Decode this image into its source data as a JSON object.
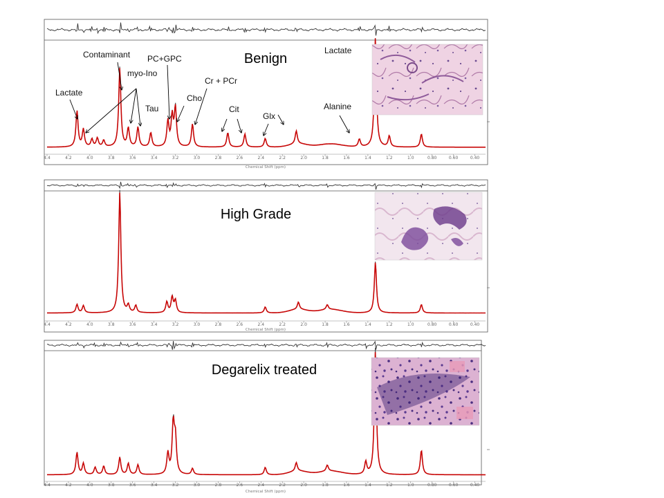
{
  "chart_data": [
    {
      "type": "line",
      "title": "Benign",
      "xlabel": "Chemical Shift (ppm)",
      "xlim": [
        4.4,
        0.3
      ],
      "ticks": [
        "4.4",
        "4.2",
        "4.0",
        "3.8",
        "3.6",
        "3.4",
        "3.2",
        "3.0",
        "2.8",
        "2.6",
        "2.4",
        "2.2",
        "2.0",
        "1.8",
        "1.6",
        "1.4",
        "1.2",
        "1.0",
        "0.80",
        "0.60",
        "0.40"
      ],
      "annotations": [
        "Contaminant",
        "PC+GPC",
        "Lactate",
        "myo-Ino",
        "Lactate",
        "Tau",
        "Cr + PCr",
        "Cho",
        "Cit",
        "Glx",
        "Alanine"
      ],
      "series": [
        {
          "name": "measured",
          "color": "#333333"
        },
        {
          "name": "fit",
          "color": "#cc0000"
        }
      ],
      "peaks": [
        {
          "ppm": 4.12,
          "height": 0.33
        },
        {
          "ppm": 4.06,
          "height": 0.16
        },
        {
          "ppm": 3.98,
          "height": 0.07
        },
        {
          "ppm": 3.93,
          "height": 0.08
        },
        {
          "ppm": 3.87,
          "height": 0.06
        },
        {
          "ppm": 3.72,
          "height": 0.72
        },
        {
          "ppm": 3.64,
          "height": 0.17
        },
        {
          "ppm": 3.55,
          "height": 0.18
        },
        {
          "ppm": 3.43,
          "height": 0.13
        },
        {
          "ppm": 3.27,
          "height": 0.23
        },
        {
          "ppm": 3.23,
          "height": 0.27
        },
        {
          "ppm": 3.2,
          "height": 0.35
        },
        {
          "ppm": 3.04,
          "height": 0.21
        },
        {
          "ppm": 2.71,
          "height": 0.13
        },
        {
          "ppm": 2.55,
          "height": 0.12
        },
        {
          "ppm": 2.36,
          "height": 0.08
        },
        {
          "ppm": 2.07,
          "height": 0.12
        },
        {
          "ppm": 1.33,
          "height": 1.0
        },
        {
          "ppm": 1.48,
          "height": 0.07
        },
        {
          "ppm": 1.2,
          "height": 0.1
        },
        {
          "ppm": 0.9,
          "height": 0.12
        }
      ]
    },
    {
      "type": "line",
      "title": "High Grade",
      "xlabel": "Chemical Shift (ppm)",
      "xlim": [
        4.4,
        0.3
      ],
      "ticks": [
        "4.4",
        "4.2",
        "4.0",
        "3.8",
        "3.6",
        "3.4",
        "3.2",
        "3.0",
        "2.8",
        "2.6",
        "2.4",
        "2.2",
        "2.0",
        "1.8",
        "1.6",
        "1.4",
        "1.2",
        "1.0",
        "0.80",
        "0.60",
        "0.40"
      ],
      "series": [
        {
          "name": "measured",
          "color": "#333333"
        },
        {
          "name": "fit",
          "color": "#cc0000"
        }
      ],
      "peaks": [
        {
          "ppm": 4.12,
          "height": 0.07
        },
        {
          "ppm": 4.06,
          "height": 0.06
        },
        {
          "ppm": 3.72,
          "height": 1.0
        },
        {
          "ppm": 3.64,
          "height": 0.06
        },
        {
          "ppm": 3.57,
          "height": 0.06
        },
        {
          "ppm": 3.28,
          "height": 0.09
        },
        {
          "ppm": 3.23,
          "height": 0.13
        },
        {
          "ppm": 3.2,
          "height": 0.1
        },
        {
          "ppm": 2.36,
          "height": 0.05
        },
        {
          "ppm": 2.05,
          "height": 0.06
        },
        {
          "ppm": 1.78,
          "height": 0.04
        },
        {
          "ppm": 1.33,
          "height": 0.42
        },
        {
          "ppm": 0.9,
          "height": 0.07
        }
      ]
    },
    {
      "type": "line",
      "title": "Degarelix treated",
      "xlabel": "Chemical Shift (ppm)",
      "xlim": [
        4.4,
        0.3
      ],
      "ticks": [
        "4.4",
        "4.2",
        "4.0",
        "3.8",
        "3.6",
        "3.4",
        "3.2",
        "3.0",
        "2.8",
        "2.6",
        "2.4",
        "2.2",
        "2.0",
        "1.8",
        "1.6",
        "1.4",
        "1.2",
        "1.0",
        "0.80",
        "0.60",
        "0.40"
      ],
      "series": [
        {
          "name": "measured",
          "color": "#333333"
        },
        {
          "name": "fit",
          "color": "#cc0000"
        }
      ],
      "peaks": [
        {
          "ppm": 4.12,
          "height": 0.18
        },
        {
          "ppm": 4.06,
          "height": 0.09
        },
        {
          "ppm": 3.95,
          "height": 0.06
        },
        {
          "ppm": 3.87,
          "height": 0.07
        },
        {
          "ppm": 3.72,
          "height": 0.14
        },
        {
          "ppm": 3.64,
          "height": 0.09
        },
        {
          "ppm": 3.55,
          "height": 0.08
        },
        {
          "ppm": 3.27,
          "height": 0.17
        },
        {
          "ppm": 3.22,
          "height": 0.4
        },
        {
          "ppm": 3.2,
          "height": 0.28
        },
        {
          "ppm": 3.04,
          "height": 0.05
        },
        {
          "ppm": 2.36,
          "height": 0.06
        },
        {
          "ppm": 2.07,
          "height": 0.07
        },
        {
          "ppm": 1.78,
          "height": 0.05
        },
        {
          "ppm": 1.42,
          "height": 0.1
        },
        {
          "ppm": 1.33,
          "height": 1.0
        },
        {
          "ppm": 0.9,
          "height": 0.2
        }
      ]
    }
  ]
}
